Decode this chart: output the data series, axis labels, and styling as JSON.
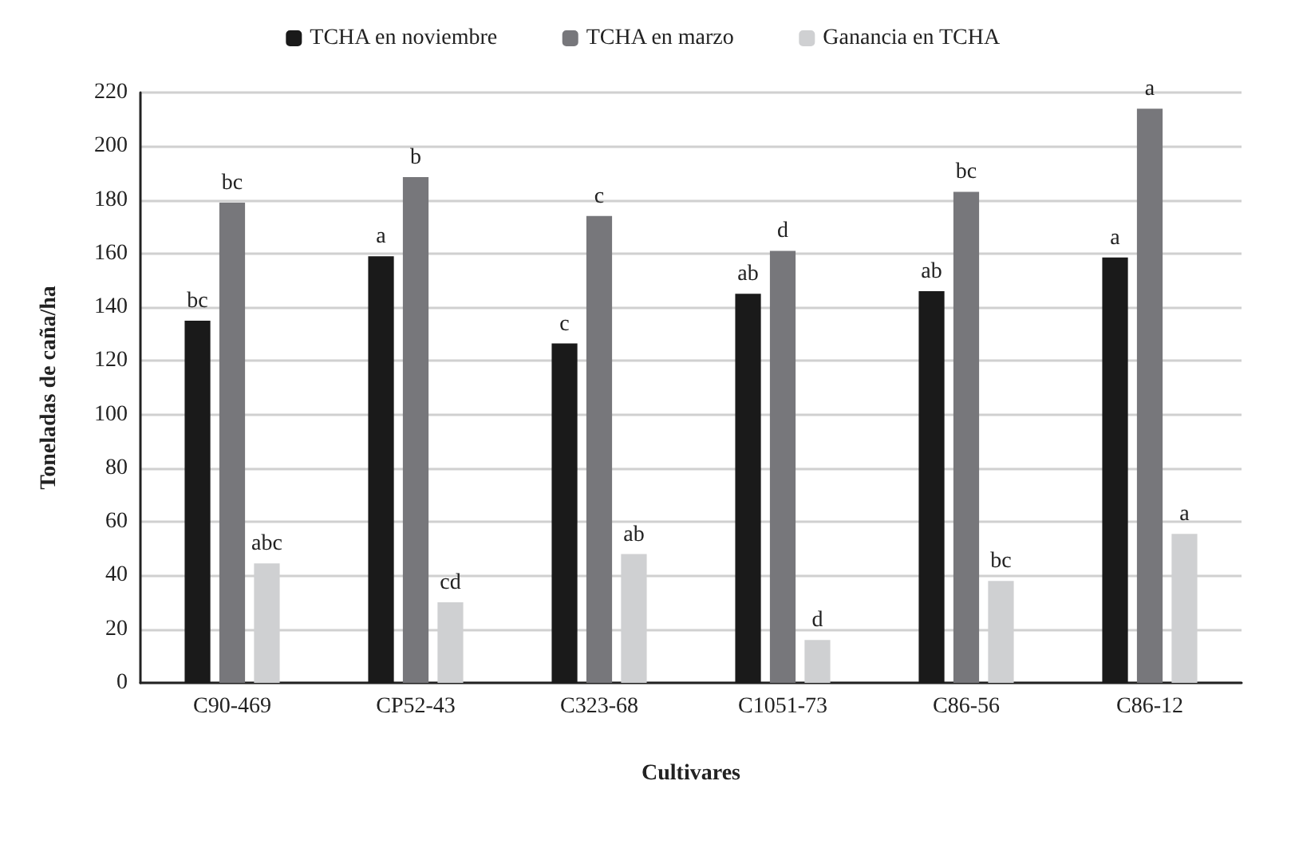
{
  "chart_data": {
    "type": "bar",
    "xlabel": "Cultivares",
    "ylabel": "Toneladas de caña/ha",
    "categories": [
      "C90-469",
      "CP52-43",
      "C323-68",
      "C1051-73",
      "C86-56",
      "C86-12"
    ],
    "series": [
      {
        "name": "TCHA en noviembre",
        "color": "#1a1a1a",
        "values": [
          135,
          159,
          126.5,
          145,
          146,
          158.5
        ],
        "value_labels": [
          "bc",
          "a",
          "c",
          "ab",
          "ab",
          "a"
        ]
      },
      {
        "name": "TCHA en marzo",
        "color": "#77777b",
        "values": [
          179,
          188.5,
          174,
          161,
          183,
          214
        ],
        "value_labels": [
          "bc",
          "b",
          "c",
          "d",
          "bc",
          "a"
        ]
      },
      {
        "name": "Ganancia en TCHA",
        "color": "#cfd0d2",
        "values": [
          44.5,
          30,
          48,
          16,
          38,
          55.5
        ],
        "value_labels": [
          "abc",
          "cd",
          "ab",
          "d",
          "bc",
          "a"
        ]
      }
    ],
    "ylim": [
      0,
      220
    ],
    "yticks": [
      0,
      20,
      40,
      60,
      80,
      100,
      120,
      140,
      160,
      180,
      200,
      220
    ],
    "grid": "y",
    "legend": "top"
  }
}
